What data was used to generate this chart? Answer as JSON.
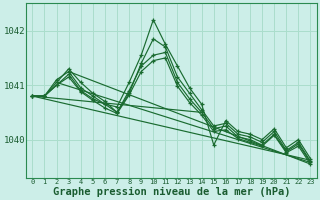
{
  "background_color": "#cceee8",
  "plot_background": "#cceee8",
  "grid_color": "#aaddcc",
  "line_color": "#1a6b30",
  "marker_color": "#1a6b30",
  "xlabel": "Graphe pression niveau de la mer (hPa)",
  "xlabel_fontsize": 7.5,
  "ylabel_ticks": [
    1040,
    1041,
    1042
  ],
  "xlim": [
    -0.5,
    23.5
  ],
  "ylim": [
    1039.3,
    1042.5
  ],
  "figsize": [
    3.2,
    2.0
  ],
  "dpi": 100,
  "series": [
    [
      1040.8,
      1040.8,
      1041.0,
      1041.2,
      1040.9,
      1040.75,
      1040.65,
      1040.6,
      1041.05,
      1041.55,
      1042.2,
      1041.75,
      1041.35,
      1040.95,
      1040.65,
      1039.9,
      1040.35,
      1040.15,
      1040.1,
      1040.0,
      1040.2,
      1039.85,
      1040.0,
      1039.65
    ],
    [
      1040.8,
      1040.8,
      1041.05,
      1041.3,
      1041.05,
      1040.85,
      1040.7,
      1040.5,
      1040.85,
      1041.4,
      1041.85,
      1041.7,
      1041.15,
      1040.85,
      1040.55,
      1040.25,
      1040.3,
      1040.1,
      1040.05,
      1039.95,
      1040.15,
      1039.8,
      1039.95,
      1039.6
    ],
    [
      1040.8,
      1040.8,
      1041.1,
      1041.25,
      1040.95,
      1040.8,
      1040.65,
      1040.5,
      1040.9,
      1041.35,
      1041.55,
      1041.6,
      1041.05,
      1040.75,
      1040.5,
      1040.2,
      1040.25,
      1040.05,
      1040.0,
      1039.9,
      1040.1,
      1039.78,
      1039.92,
      1039.58
    ],
    [
      1040.8,
      1040.8,
      1041.0,
      1041.15,
      1040.88,
      1040.72,
      1040.58,
      1040.48,
      1040.82,
      1041.25,
      1041.45,
      1041.5,
      1040.98,
      1040.68,
      1040.45,
      1040.15,
      1040.18,
      1040.02,
      1039.95,
      1039.88,
      1040.08,
      1039.76,
      1039.88,
      1039.55
    ]
  ],
  "trend_series": [
    {
      "x": [
        0,
        14
      ],
      "y": [
        1040.8,
        1040.5
      ]
    },
    {
      "x": [
        0,
        23
      ],
      "y": [
        1040.8,
        1039.62
      ]
    },
    {
      "x": [
        2,
        23
      ],
      "y": [
        1041.05,
        1039.58
      ]
    },
    {
      "x": [
        3,
        23
      ],
      "y": [
        1041.25,
        1039.55
      ]
    }
  ]
}
